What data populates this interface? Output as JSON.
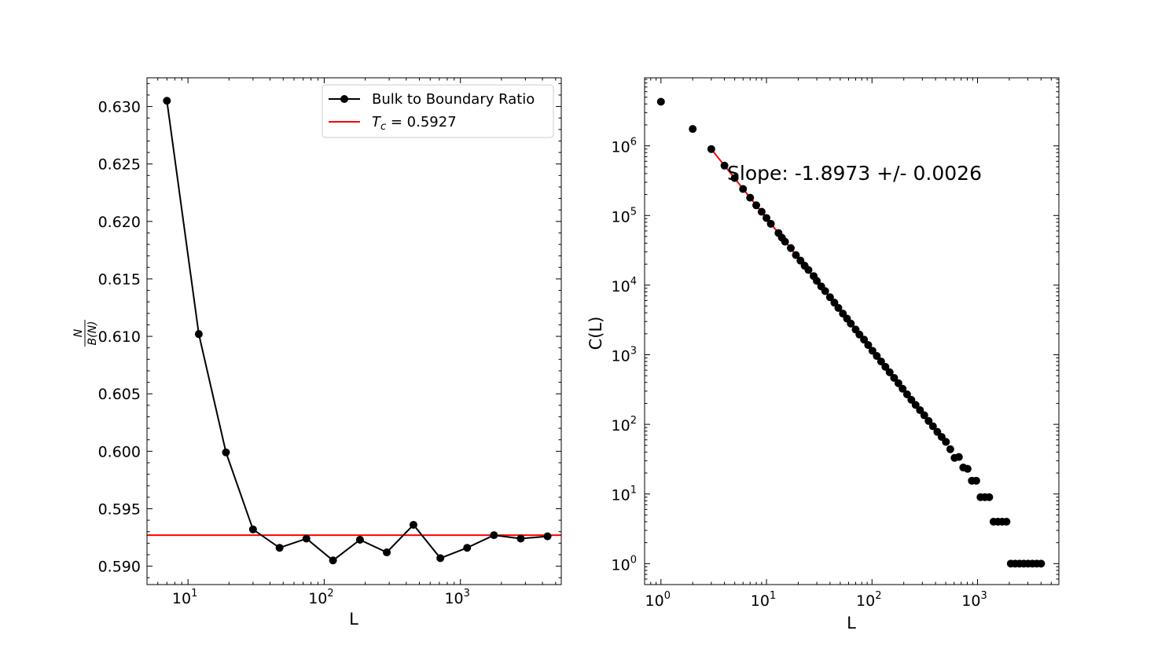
{
  "chart_data": [
    {
      "type": "line",
      "xlabel": "L",
      "ylabel": "N / B(N)",
      "xscale": "log",
      "xlim": [
        5,
        5500
      ],
      "ylim": [
        0.5884,
        0.6325
      ],
      "xticks": [
        {
          "value": 10,
          "base": "10",
          "exp": "1"
        },
        {
          "value": 100,
          "base": "10",
          "exp": "2"
        },
        {
          "value": 1000,
          "base": "10",
          "exp": "3"
        }
      ],
      "yticks": [
        {
          "value": 0.59,
          "label": "0.590"
        },
        {
          "value": 0.595,
          "label": "0.595"
        },
        {
          "value": 0.6,
          "label": "0.600"
        },
        {
          "value": 0.605,
          "label": "0.605"
        },
        {
          "value": 0.61,
          "label": "0.610"
        },
        {
          "value": 0.615,
          "label": "0.615"
        },
        {
          "value": 0.62,
          "label": "0.620"
        },
        {
          "value": 0.625,
          "label": "0.625"
        },
        {
          "value": 0.63,
          "label": "0.630"
        }
      ],
      "legend_position": "top-right",
      "series": [
        {
          "name": "Bulk to Boundary Ratio",
          "color": "#000000",
          "marker": "circle",
          "x": [
            7,
            12,
            19,
            30,
            47,
            74,
            116,
            183,
            288,
            452,
            712,
            1120,
            1762,
            2772,
            4361
          ],
          "y": [
            0.6305,
            0.6102,
            0.5999,
            0.5932,
            0.5916,
            0.5924,
            0.5905,
            0.5923,
            0.5912,
            0.5936,
            0.5907,
            0.5916,
            0.5927,
            0.5924,
            0.5926
          ]
        }
      ],
      "reference_line": {
        "name_symbol": "T",
        "name_sub": "c",
        "name_value": " = 0.5927",
        "value": 0.5927,
        "color": "#ff0000"
      }
    },
    {
      "type": "scatter",
      "xlabel": "L",
      "ylabel": "C(L)",
      "xscale": "log",
      "yscale": "log",
      "xlim": [
        0.7,
        5900
      ],
      "ylim": [
        0.5,
        9500000
      ],
      "xticks": [
        {
          "value": 1,
          "base": "10",
          "exp": "0"
        },
        {
          "value": 10,
          "base": "10",
          "exp": "1"
        },
        {
          "value": 100,
          "base": "10",
          "exp": "2"
        },
        {
          "value": 1000,
          "base": "10",
          "exp": "3"
        }
      ],
      "yticks": [
        {
          "value": 1,
          "base": "10",
          "exp": "0"
        },
        {
          "value": 10,
          "base": "10",
          "exp": "1"
        },
        {
          "value": 100,
          "base": "10",
          "exp": "2"
        },
        {
          "value": 1000,
          "base": "10",
          "exp": "3"
        },
        {
          "value": 10000,
          "base": "10",
          "exp": "4"
        },
        {
          "value": 100000,
          "base": "10",
          "exp": "5"
        },
        {
          "value": 1000000,
          "base": "10",
          "exp": "6"
        }
      ],
      "annotation": "Slope: -1.8973  +/-  0.0026",
      "fit": {
        "slope": -1.8973,
        "error": 0.0026,
        "x_from": 3,
        "x_to": 470,
        "color": "#ff0000"
      },
      "series": [
        {
          "color": "#000000",
          "marker": "circle",
          "points": [
            [
              1,
              4300000
            ],
            [
              2,
              1750000
            ],
            [
              3,
              900000
            ],
            [
              4,
              520000
            ],
            [
              5,
              345000
            ],
            [
              6,
              240000
            ],
            [
              7,
              180000
            ],
            [
              8,
              140000
            ],
            [
              9,
              113000
            ],
            [
              10,
              92000
            ],
            [
              11,
              76000
            ],
            [
              13,
              56000
            ],
            [
              14,
              48000
            ],
            [
              15,
              42000
            ],
            [
              17,
              34000
            ],
            [
              19,
              27000
            ],
            [
              21,
              22500
            ],
            [
              23,
              19000
            ],
            [
              25,
              16500
            ],
            [
              28,
              13500
            ],
            [
              30,
              11500
            ],
            [
              33,
              9600
            ],
            [
              36,
              8200
            ],
            [
              40,
              6700
            ],
            [
              44,
              5600
            ],
            [
              48,
              4700
            ],
            [
              53,
              3900
            ],
            [
              58,
              3300
            ],
            [
              63,
              2800
            ],
            [
              70,
              2300
            ],
            [
              76,
              1950
            ],
            [
              84,
              1650
            ],
            [
              92,
              1380
            ],
            [
              101,
              1140
            ],
            [
              111,
              960
            ],
            [
              122,
              800
            ],
            [
              134,
              670
            ],
            [
              147,
              560
            ],
            [
              162,
              465
            ],
            [
              178,
              390
            ],
            [
              195,
              325
            ],
            [
              215,
              270
            ],
            [
              236,
              225
            ],
            [
              259,
              190
            ],
            [
              285,
              160
            ],
            [
              313,
              135
            ],
            [
              344,
              112
            ],
            [
              378,
              94
            ],
            [
              416,
              78
            ],
            [
              457,
              66
            ],
            [
              502,
              56
            ],
            [
              552,
              44
            ],
            [
              606,
              33
            ],
            [
              666,
              34
            ],
            [
              732,
              24
            ],
            [
              805,
              23
            ],
            [
              884,
              15.5
            ],
            [
              972,
              15.5
            ],
            [
              1068,
              9
            ],
            [
              1174,
              9
            ],
            [
              1290,
              9
            ],
            [
              1418,
              4
            ],
            [
              1558,
              4
            ],
            [
              1712,
              4
            ],
            [
              1882,
              4
            ],
            [
              2068,
              1
            ],
            [
              2272,
              1
            ],
            [
              2497,
              1
            ],
            [
              2744,
              1
            ],
            [
              3015,
              1
            ],
            [
              3314,
              1
            ],
            [
              3641,
              1
            ],
            [
              4001,
              1
            ]
          ]
        }
      ]
    }
  ]
}
